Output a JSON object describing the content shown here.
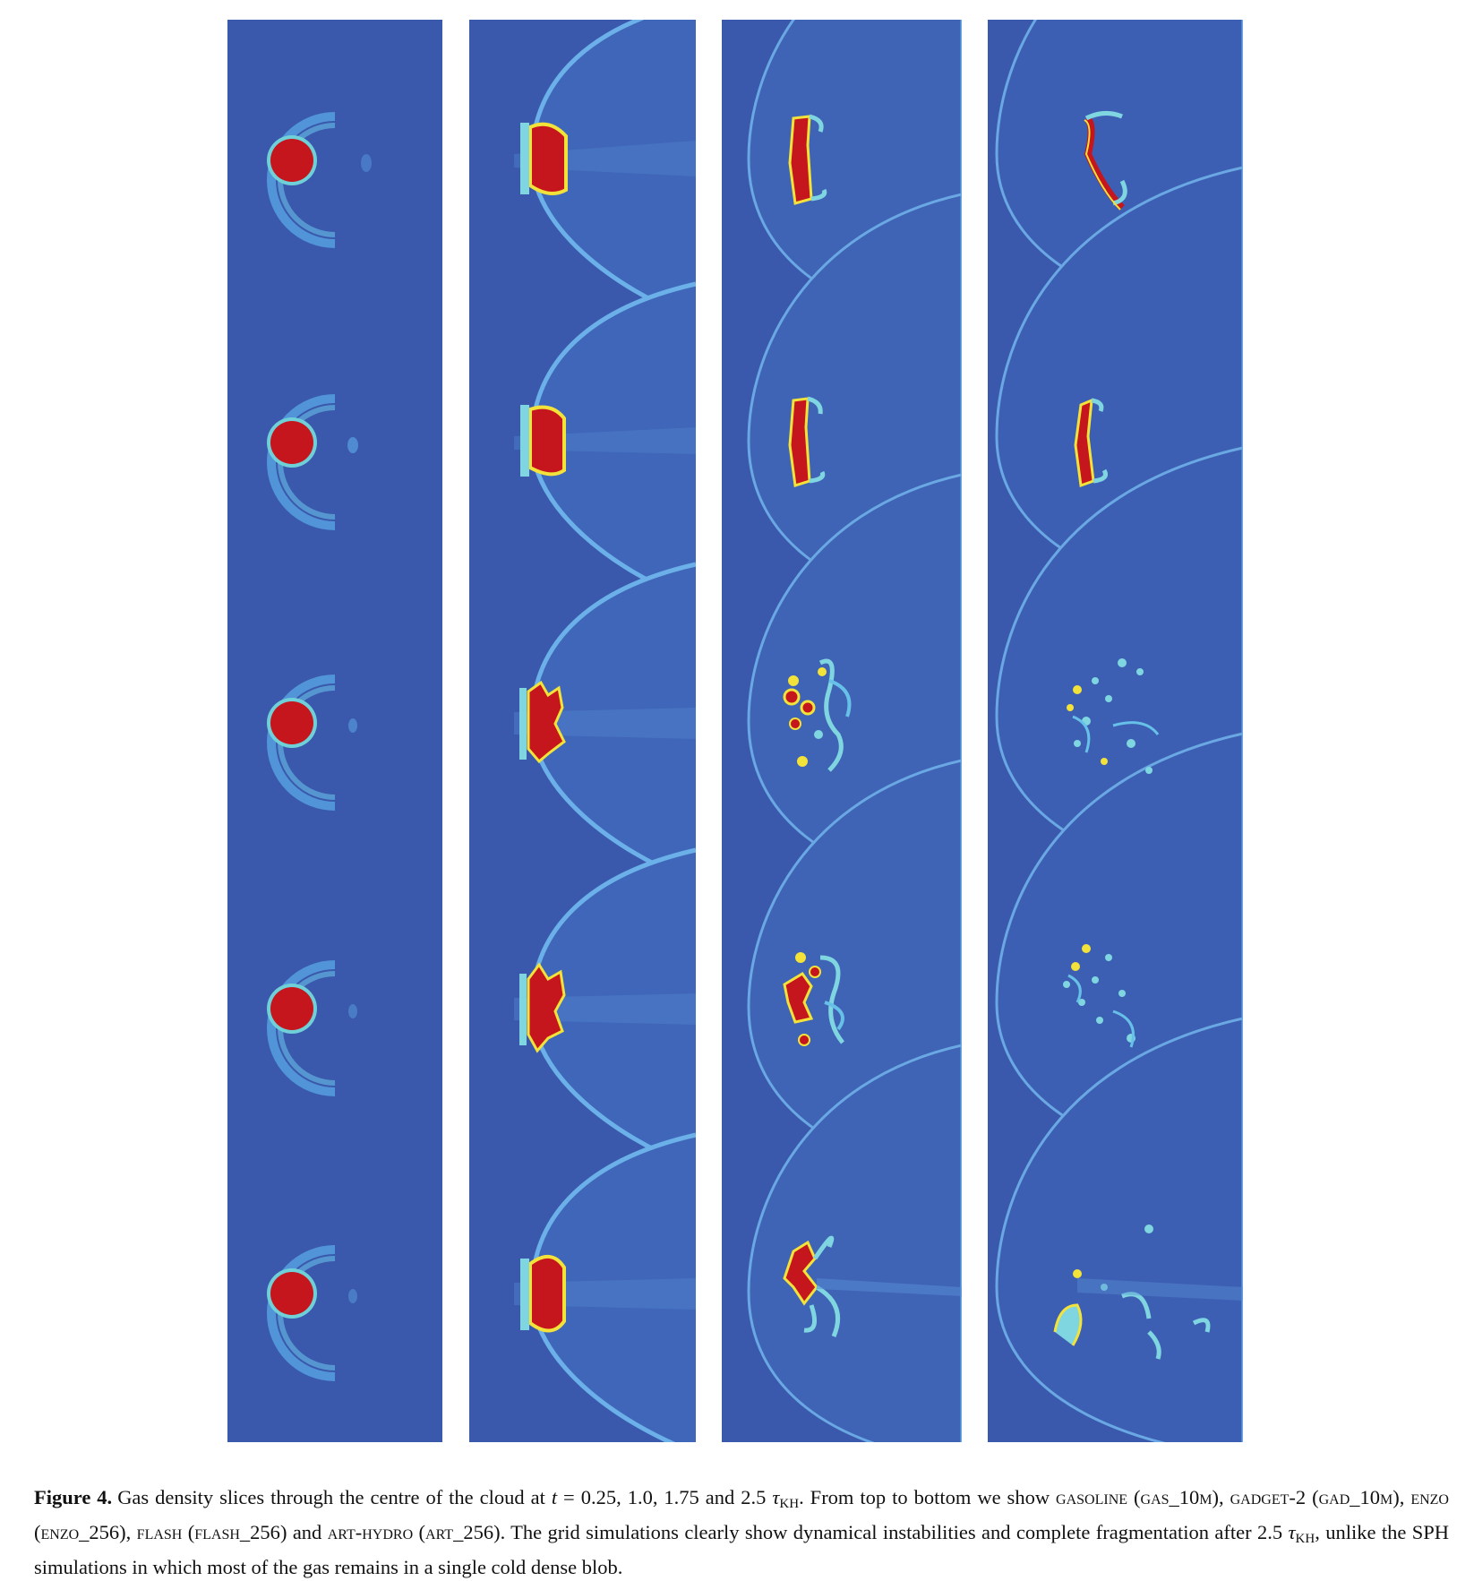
{
  "figure": {
    "label": "Figure 4.",
    "caption_parts": {
      "p1": "Gas density slices through the centre of the cloud at ",
      "t": "t",
      "p2": " = 0.25, 1.0, 1.75 and 2.5 ",
      "tau": "τ",
      "kh": "KH",
      "p3": ". From top to bottom we show ",
      "code1": "gasoline",
      "p4": " (",
      "run1": "gas_10m",
      "p5": "), ",
      "code2": "gadget",
      "p5b": "-2 (",
      "run2": "gad_10m",
      "p6": "), ",
      "code3": "enzo",
      "p7": " (",
      "run3": "enzo_256",
      "p8": "), ",
      "code4": "flash",
      "p9": " (",
      "run4": "flash_256",
      "p10": ") and ",
      "code5": "art-hydro",
      "p11": " (",
      "run5": "art_256",
      "p12": "). The grid simulations clearly show dynamical instabilities and complete fragmentation after 2.5 ",
      "tau2": "τ",
      "kh2": "KH",
      "p13": ", unlike the SPH simulations in which most of the gas remains in a single cold dense blob."
    },
    "colors": {
      "background": "#3a59ad",
      "shock": "#5aa8e6",
      "cloud": "#c4161c",
      "edge": "#f2e23a"
    },
    "columns": [
      {
        "time": "0.25"
      },
      {
        "time": "1.0"
      },
      {
        "time": "1.75"
      },
      {
        "time": "2.5"
      }
    ],
    "rows": [
      "gasoline",
      "gadget-2",
      "enzo",
      "flash",
      "art-hydro"
    ]
  }
}
